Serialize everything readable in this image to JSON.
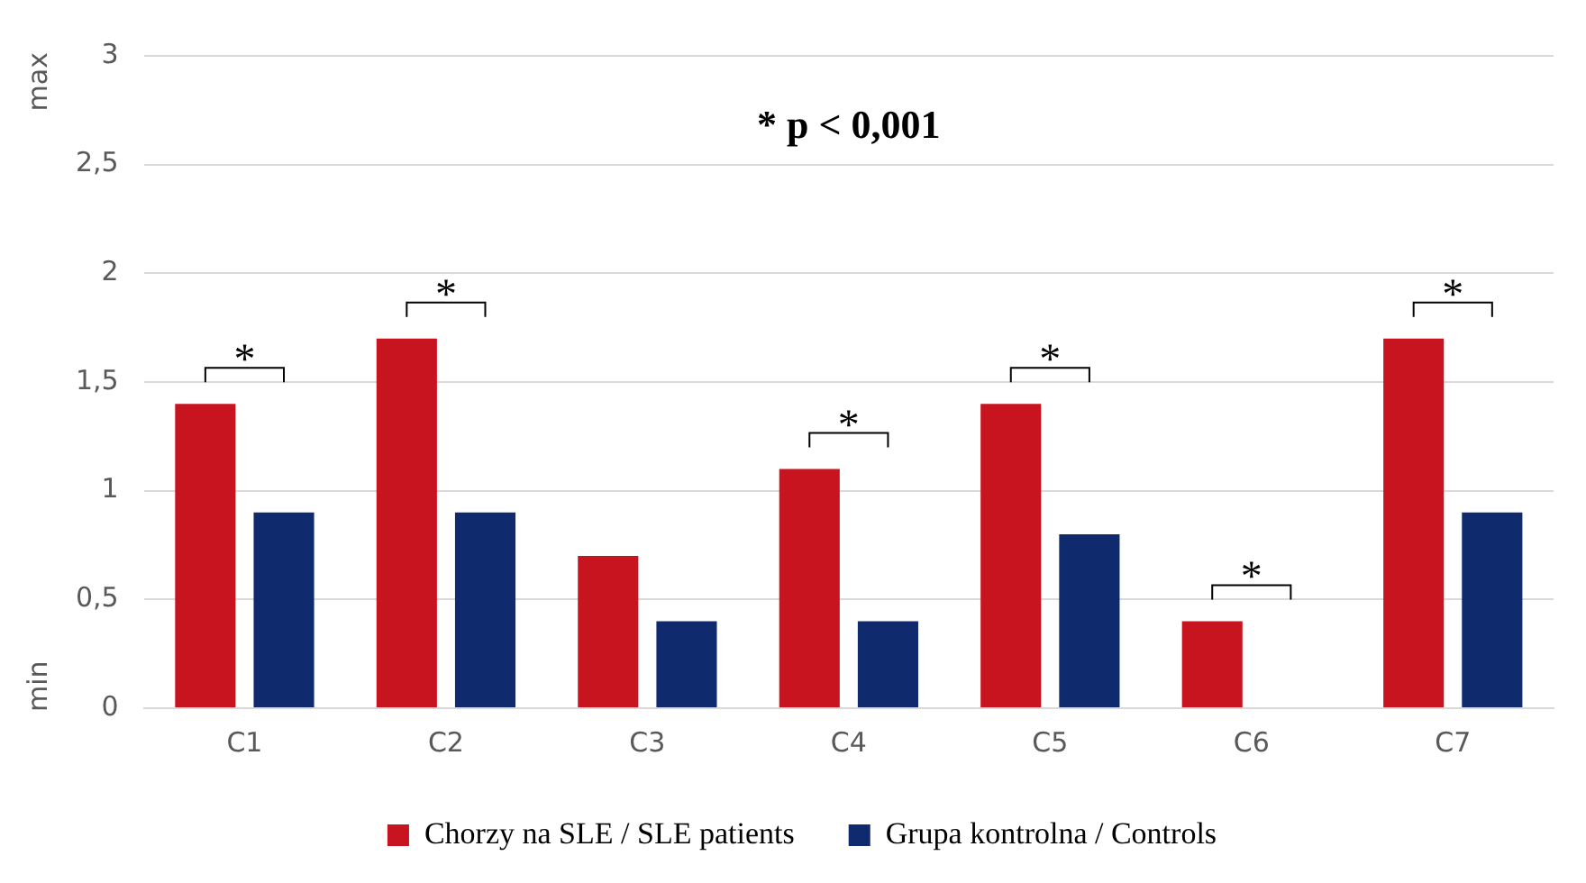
{
  "chart_data": {
    "type": "bar",
    "categories": [
      "C1",
      "C2",
      "C3",
      "C4",
      "C5",
      "C6",
      "C7"
    ],
    "series": [
      {
        "name": "Chorzy na SLE / SLE patients",
        "color": "#c8141e",
        "values": [
          1.4,
          1.7,
          0.7,
          1.1,
          1.4,
          0.4,
          1.7
        ]
      },
      {
        "name": "Grupa kontrolna / Controls",
        "color": "#102a6e",
        "values": [
          0.9,
          0.9,
          0.4,
          0.4,
          0.8,
          0,
          0.9
        ]
      }
    ],
    "ylim": [
      0,
      3
    ],
    "yticks": [
      0,
      {
        "value": 0.5,
        "label": "0,5"
      },
      1,
      {
        "value": 1.5,
        "label": "1,5"
      },
      2,
      {
        "value": 2.5,
        "label": "2,5"
      },
      3
    ],
    "grid": "y",
    "legend": "bottom",
    "annotations": [
      "* p < 0,001",
      "max",
      "min",
      "*",
      "*",
      "*",
      "*",
      "*",
      "*"
    ]
  }
}
